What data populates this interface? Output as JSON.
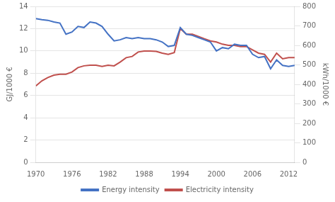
{
  "chart_data": {
    "type": "line",
    "ylabel": "GJ/1000 €",
    "y2label": "kWh/1000 €",
    "x": [
      1970,
      1971,
      1972,
      1973,
      1974,
      1975,
      1976,
      1977,
      1978,
      1979,
      1980,
      1981,
      1982,
      1983,
      1984,
      1985,
      1986,
      1987,
      1988,
      1989,
      1990,
      1991,
      1992,
      1993,
      1994,
      1995,
      1996,
      1997,
      1998,
      1999,
      2000,
      2001,
      2002,
      2003,
      2004,
      2005,
      2006,
      2007,
      2008,
      2009,
      2010,
      2011,
      2012,
      2013
    ],
    "series": [
      {
        "name": "Energy intensity",
        "color": "#4472C4",
        "values": [
          12.9,
          12.8,
          12.75,
          12.6,
          12.5,
          11.5,
          11.7,
          12.2,
          12.1,
          12.6,
          12.5,
          12.2,
          11.5,
          10.9,
          11.0,
          11.2,
          11.1,
          11.2,
          11.1,
          11.1,
          11.0,
          10.8,
          10.4,
          10.5,
          12.1,
          11.5,
          11.4,
          11.2,
          11.0,
          10.8,
          10.0,
          10.3,
          10.2,
          10.6,
          10.5,
          10.5,
          9.7,
          9.4,
          9.5,
          8.4,
          9.2,
          8.7,
          8.6,
          8.7
        ]
      },
      {
        "name": "Electricity intensity",
        "color": "#C0504D",
        "axis": "y2",
        "values": [
          392,
          418,
          435,
          447,
          452,
          452,
          463,
          486,
          495,
          498,
          498,
          492,
          498,
          495,
          514,
          537,
          543,
          566,
          571,
          571,
          569,
          560,
          554,
          563,
          686,
          657,
          657,
          646,
          634,
          623,
          617,
          606,
          600,
          600,
          594,
          594,
          577,
          560,
          554,
          514,
          560,
          531,
          537,
          537
        ]
      }
    ],
    "xlim": [
      1970,
      2013
    ],
    "xticks": [
      1970,
      1976,
      1982,
      1988,
      1994,
      2000,
      2006,
      2012
    ],
    "ylim": [
      0,
      14
    ],
    "yticks": [
      0,
      2,
      4,
      6,
      8,
      10,
      12,
      14
    ],
    "y2lim": [
      0,
      800
    ],
    "y2ticks": [
      0,
      100,
      200,
      300,
      400,
      500,
      600,
      700,
      800
    ],
    "grid": true,
    "legend": "bottom"
  }
}
